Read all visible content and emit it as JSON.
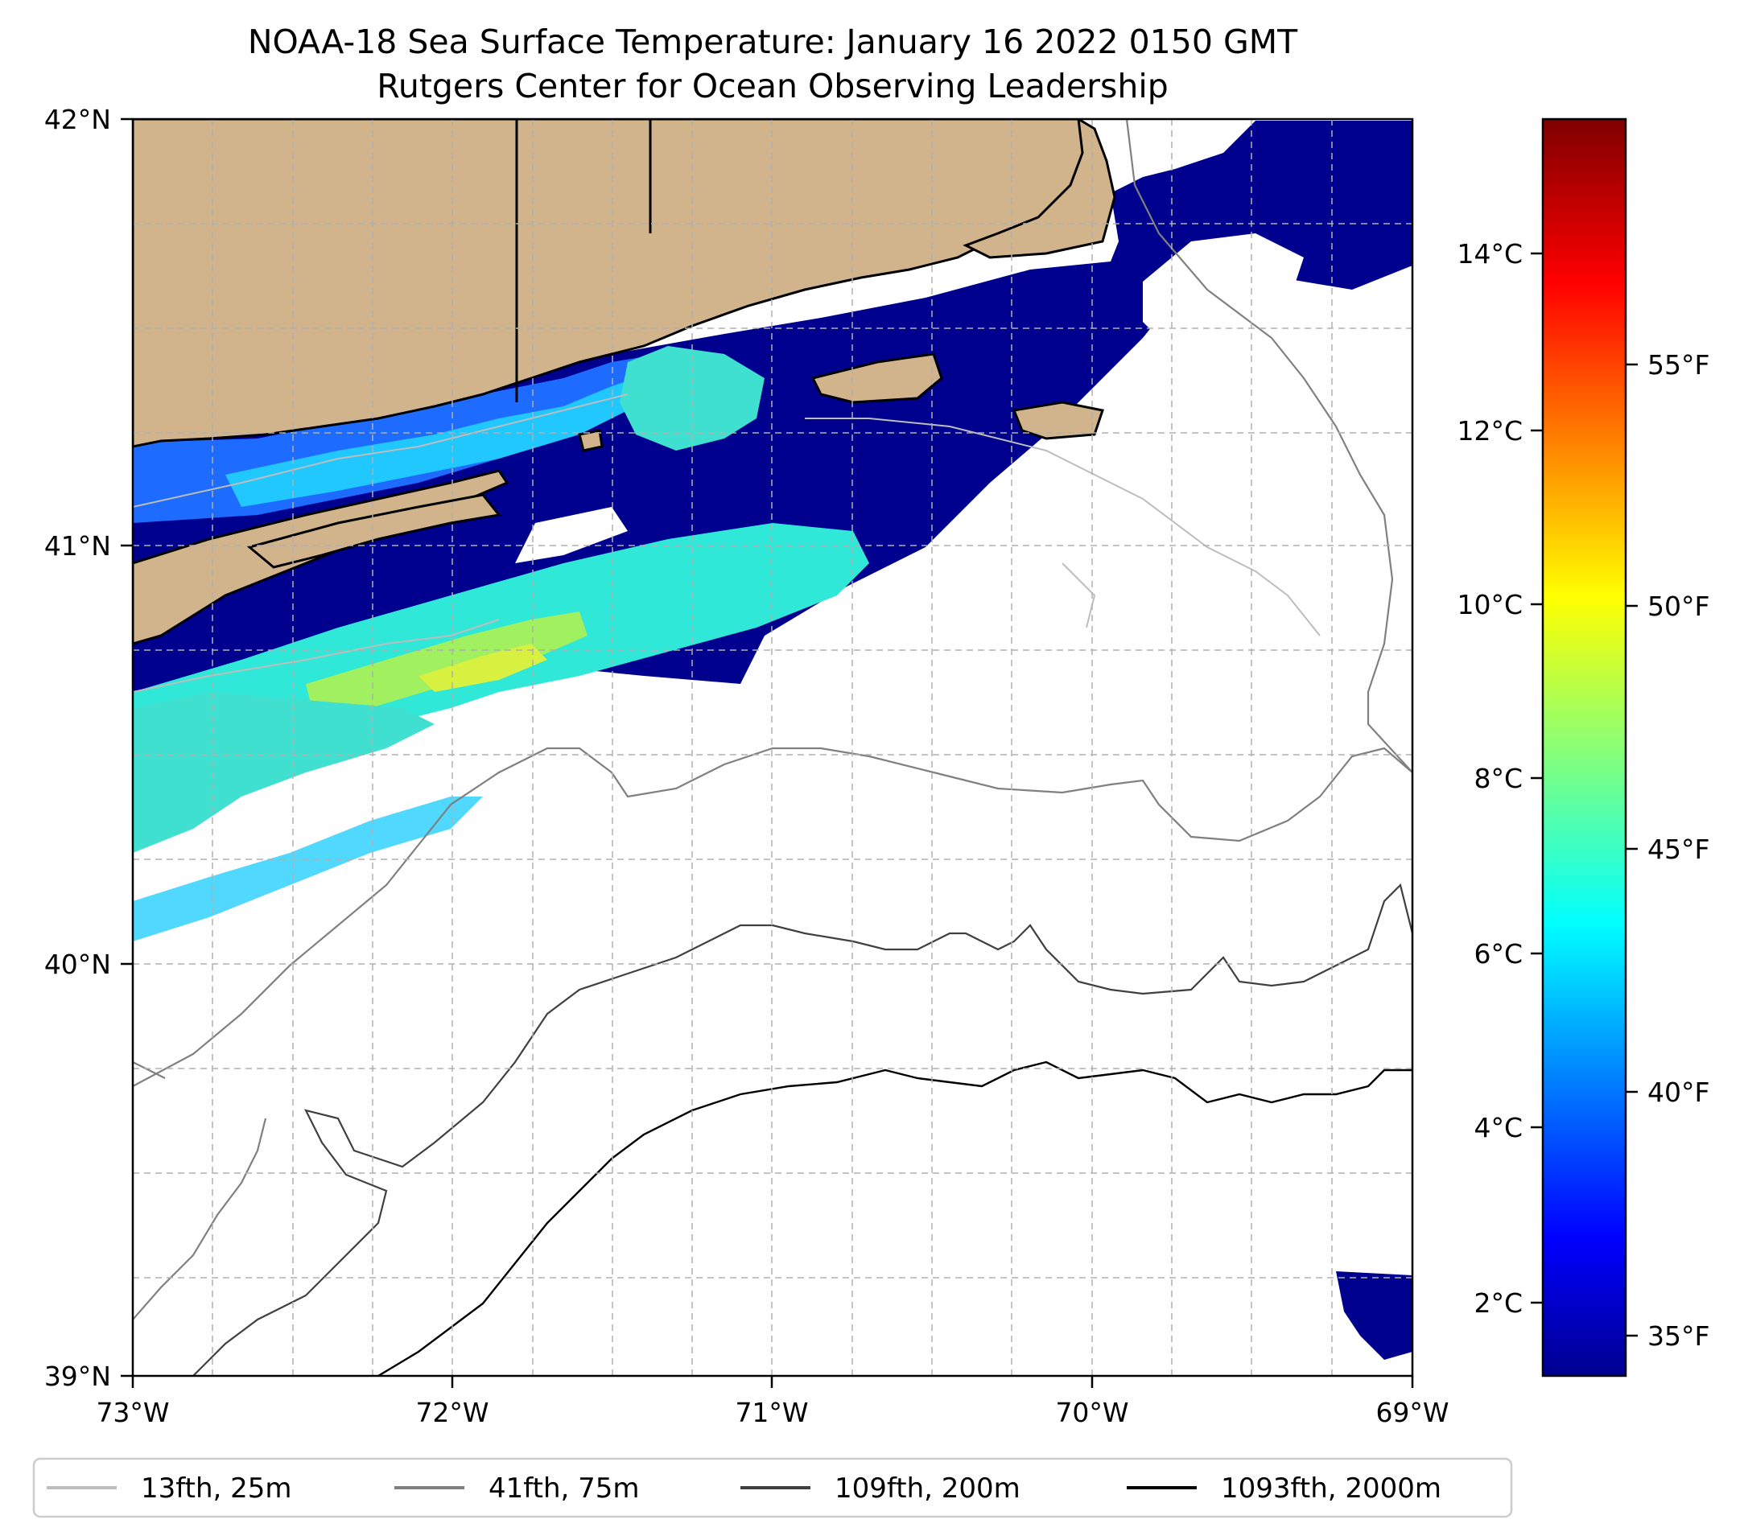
{
  "title": {
    "line1": "NOAA-18 Sea Surface Temperature: January 16 2022 0150 GMT",
    "line2": "Rutgers Center for Ocean Observing Leadership"
  },
  "map": {
    "lat_labels": [
      "42°N",
      "41°N",
      "40°N",
      "39°N"
    ],
    "lon_labels": [
      "73°W",
      "72°W",
      "71°W",
      "70°W",
      "69°W"
    ],
    "lon_range": [
      -73,
      -69
    ],
    "lat_range": [
      39,
      42
    ],
    "land_color": "#d2b48c",
    "ocean_color": "#ffffff"
  },
  "colorbar": {
    "celsius_ticks": [
      "14°C",
      "12°C",
      "10°C",
      "8°C",
      "6°C",
      "4°C",
      "2°C"
    ],
    "fahrenheit_ticks": [
      "55°F",
      "50°F",
      "45°F",
      "40°F",
      "35°F"
    ],
    "colormap": "jet",
    "range_c": [
      1.3,
      15.8
    ]
  },
  "legend": {
    "items": [
      {
        "label": "13fth, 25m",
        "color": "#bdbdbd"
      },
      {
        "label": "41fth, 75m",
        "color": "#808080"
      },
      {
        "label": "109fth, 200m",
        "color": "#404040"
      },
      {
        "label": "1093fth, 2000m",
        "color": "#000000"
      }
    ]
  }
}
